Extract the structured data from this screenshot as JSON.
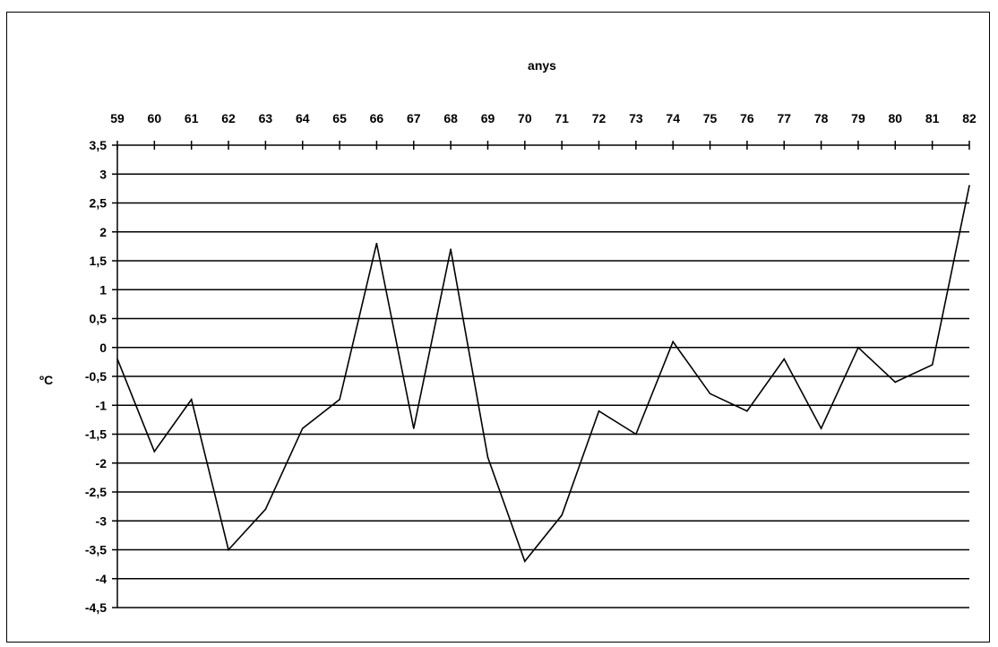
{
  "chart_data": {
    "type": "line",
    "xlabel": "anys",
    "ylabel": "ºC",
    "x_axis_position": "top",
    "grid": true,
    "categories": [
      "59",
      "60",
      "61",
      "62",
      "63",
      "64",
      "65",
      "66",
      "67",
      "68",
      "69",
      "70",
      "71",
      "72",
      "73",
      "74",
      "75",
      "76",
      "77",
      "78",
      "79",
      "80",
      "81",
      "82"
    ],
    "y_ticks": [
      "3,5",
      "3",
      "2,5",
      "2",
      "1,5",
      "1",
      "0,5",
      "0",
      "-0,5",
      "-1",
      "-1,5",
      "-2",
      "-2,5",
      "-3",
      "-3,5",
      "-4",
      "-4,5"
    ],
    "ylim": [
      -4.5,
      3.5
    ],
    "series": [
      {
        "values": [
          -0.2,
          -1.8,
          -0.9,
          -3.5,
          -2.8,
          -1.4,
          -0.9,
          1.8,
          -1.4,
          1.7,
          -1.9,
          -3.7,
          -2.9,
          -1.1,
          -1.5,
          0.1,
          -0.8,
          -1.1,
          -0.2,
          -1.4,
          0.0,
          -0.6,
          -0.3,
          2.8
        ]
      }
    ],
    "line_color": "#000000"
  }
}
